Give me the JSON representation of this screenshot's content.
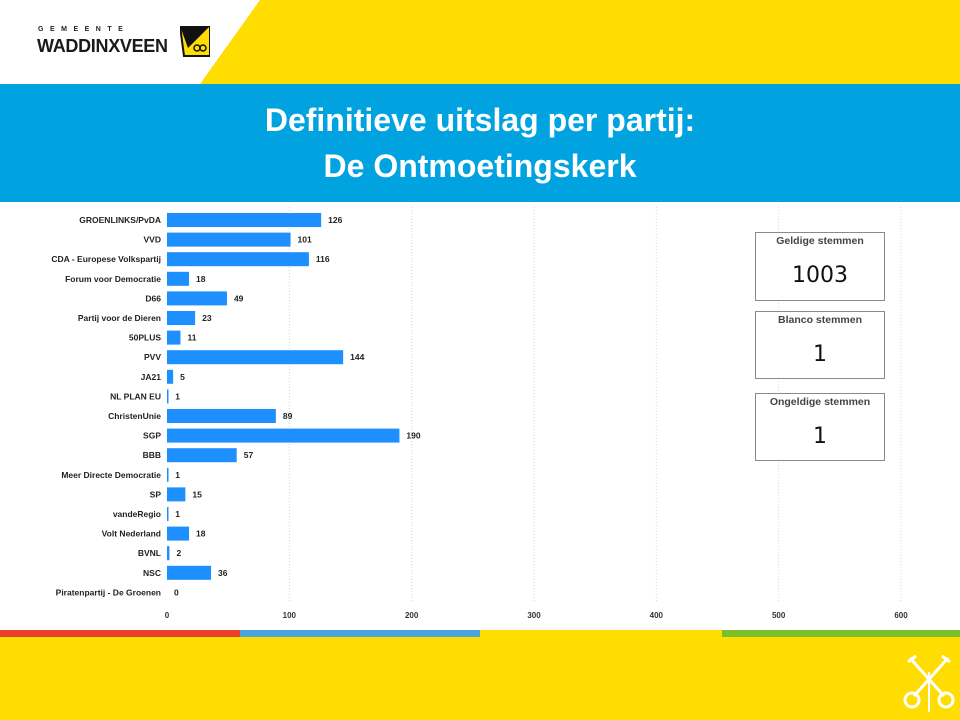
{
  "logo": {
    "small_text": "GEMEENTE",
    "main_text": "WADDINXVEEN"
  },
  "title": {
    "line1": "Definitieve uitslag per partij:",
    "line2": "De Ontmoetingskerk"
  },
  "colors": {
    "bar": "#1E8FFF",
    "header_blue": "#00A3E0",
    "brand_yellow": "#FFDD00",
    "stripe_red": "#E8412E",
    "stripe_blue": "#4FA3DC",
    "stripe_green": "#7BC02A"
  },
  "cards": [
    {
      "label": "Geldige stemmen",
      "value": "1003"
    },
    {
      "label": "Blanco stemmen",
      "value": "1"
    },
    {
      "label": "Ongeldige stemmen",
      "value": "1"
    }
  ],
  "chart_data": {
    "type": "bar",
    "orientation": "horizontal",
    "categories": [
      "GROENLINKS/PvDA",
      "VVD",
      "CDA - Europese Volkspartij",
      "Forum voor Democratie",
      "D66",
      "Partij voor de Dieren",
      "50PLUS",
      "PVV",
      "JA21",
      "NL PLAN EU",
      "ChristenUnie",
      "SGP",
      "BBB",
      "Meer Directe Democratie",
      "SP",
      "vandeRegio",
      "Volt Nederland",
      "BVNL",
      "NSC",
      "Piratenpartij - De Groenen"
    ],
    "values": [
      126,
      101,
      116,
      18,
      49,
      23,
      11,
      144,
      5,
      1,
      89,
      190,
      57,
      1,
      15,
      1,
      18,
      2,
      36,
      0
    ],
    "xlim": [
      0,
      600
    ],
    "xticks": [
      "0",
      "100",
      "200",
      "300",
      "400",
      "500",
      "600"
    ],
    "grid": "vertical dotted",
    "data_labels": true
  }
}
